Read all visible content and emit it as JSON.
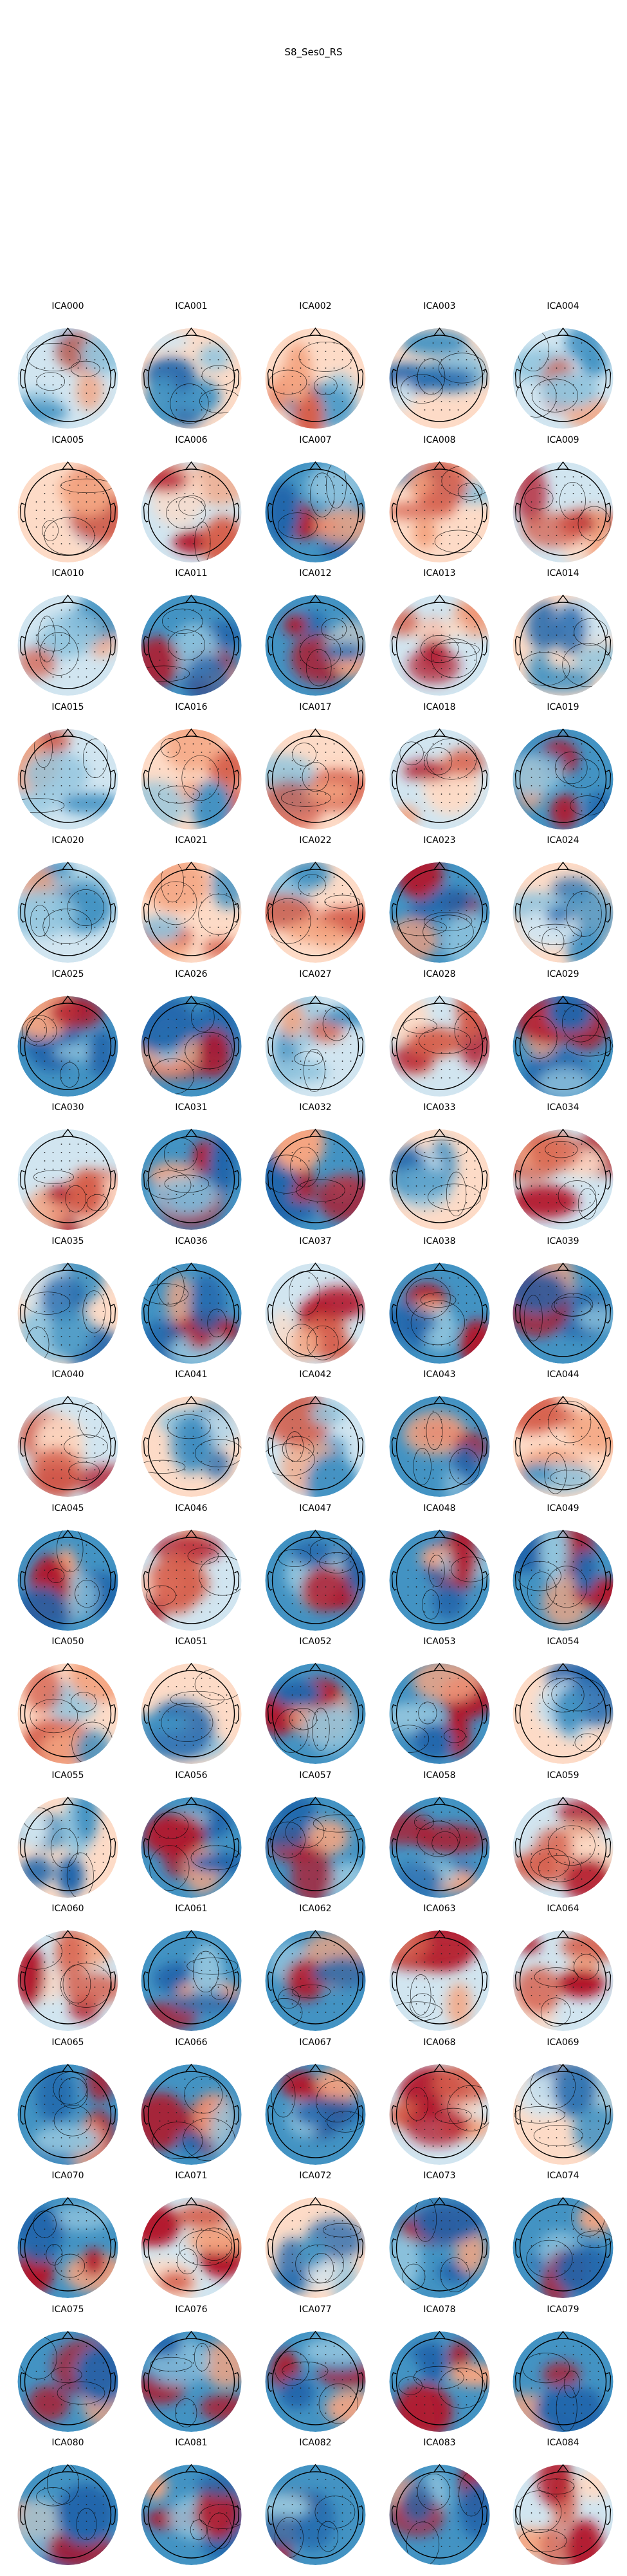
{
  "figure": {
    "title": "S8_Ses0_RS"
  },
  "components": [
    {
      "label": "ICA000",
      "palette": "br"
    },
    {
      "label": "ICA001",
      "palette": "b"
    },
    {
      "label": "ICA002",
      "palette": "rb"
    },
    {
      "label": "ICA003",
      "palette": "b"
    },
    {
      "label": "ICA004",
      "palette": "br"
    },
    {
      "label": "ICA005",
      "palette": "rb"
    },
    {
      "label": "ICA006",
      "palette": "r"
    },
    {
      "label": "ICA007",
      "palette": "mix"
    },
    {
      "label": "ICA008",
      "palette": "rb"
    },
    {
      "label": "ICA009",
      "palette": "r"
    },
    {
      "label": "ICA010",
      "palette": "br"
    },
    {
      "label": "ICA011",
      "palette": "mix"
    },
    {
      "label": "ICA012",
      "palette": "mix"
    },
    {
      "label": "ICA013",
      "palette": "r"
    },
    {
      "label": "ICA014",
      "palette": "b"
    },
    {
      "label": "ICA015",
      "palette": "br"
    },
    {
      "label": "ICA016",
      "palette": "rb"
    },
    {
      "label": "ICA017",
      "palette": "rb"
    },
    {
      "label": "ICA018",
      "palette": "r"
    },
    {
      "label": "ICA019",
      "palette": "mix"
    },
    {
      "label": "ICA020",
      "palette": "br"
    },
    {
      "label": "ICA021",
      "palette": "rb"
    },
    {
      "label": "ICA022",
      "palette": "rb"
    },
    {
      "label": "ICA023",
      "palette": "mix"
    },
    {
      "label": "ICA024",
      "palette": "b"
    },
    {
      "label": "ICA025",
      "palette": "mix"
    },
    {
      "label": "ICA026",
      "palette": "mix"
    },
    {
      "label": "ICA027",
      "palette": "br"
    },
    {
      "label": "ICA028",
      "palette": "r"
    },
    {
      "label": "ICA029",
      "palette": "mix"
    },
    {
      "label": "ICA030",
      "palette": "r"
    },
    {
      "label": "ICA031",
      "palette": "mix"
    },
    {
      "label": "ICA032",
      "palette": "mix"
    },
    {
      "label": "ICA033",
      "palette": "b"
    },
    {
      "label": "ICA034",
      "palette": "r"
    },
    {
      "label": "ICA035",
      "palette": "b"
    },
    {
      "label": "ICA036",
      "palette": "mix"
    },
    {
      "label": "ICA037",
      "palette": "r"
    },
    {
      "label": "ICA038",
      "palette": "mix"
    },
    {
      "label": "ICA039",
      "palette": "mix"
    },
    {
      "label": "ICA040",
      "palette": "r"
    },
    {
      "label": "ICA041",
      "palette": "b"
    },
    {
      "label": "ICA042",
      "palette": "br"
    },
    {
      "label": "ICA043",
      "palette": "mix"
    },
    {
      "label": "ICA044",
      "palette": "rb"
    },
    {
      "label": "ICA045",
      "palette": "mix"
    },
    {
      "label": "ICA046",
      "palette": "r"
    },
    {
      "label": "ICA047",
      "palette": "mix"
    },
    {
      "label": "ICA048",
      "palette": "mix"
    },
    {
      "label": "ICA049",
      "palette": "mix"
    },
    {
      "label": "ICA050",
      "palette": "rb"
    },
    {
      "label": "ICA051",
      "palette": "b"
    },
    {
      "label": "ICA052",
      "palette": "mix"
    },
    {
      "label": "ICA053",
      "palette": "mix"
    },
    {
      "label": "ICA054",
      "palette": "b"
    },
    {
      "label": "ICA055",
      "palette": "b"
    },
    {
      "label": "ICA056",
      "palette": "mix"
    },
    {
      "label": "ICA057",
      "palette": "mix"
    },
    {
      "label": "ICA058",
      "palette": "mix"
    },
    {
      "label": "ICA059",
      "palette": "r"
    },
    {
      "label": "ICA060",
      "palette": "r"
    },
    {
      "label": "ICA061",
      "palette": "mix"
    },
    {
      "label": "ICA062",
      "palette": "mix"
    },
    {
      "label": "ICA063",
      "palette": "r"
    },
    {
      "label": "ICA064",
      "palette": "r"
    },
    {
      "label": "ICA065",
      "palette": "mix"
    },
    {
      "label": "ICA066",
      "palette": "mix"
    },
    {
      "label": "ICA067",
      "palette": "mix"
    },
    {
      "label": "ICA068",
      "palette": "r"
    },
    {
      "label": "ICA069",
      "palette": "b"
    },
    {
      "label": "ICA070",
      "palette": "mix"
    },
    {
      "label": "ICA071",
      "palette": "r"
    },
    {
      "label": "ICA072",
      "palette": "b"
    },
    {
      "label": "ICA073",
      "palette": "mix"
    },
    {
      "label": "ICA074",
      "palette": "mix"
    },
    {
      "label": "ICA075",
      "palette": "mix"
    },
    {
      "label": "ICA076",
      "palette": "mix"
    },
    {
      "label": "ICA077",
      "palette": "mix"
    },
    {
      "label": "ICA078",
      "palette": "mix"
    },
    {
      "label": "ICA079",
      "palette": "mix"
    },
    {
      "label": "ICA080",
      "palette": "mix"
    },
    {
      "label": "ICA081",
      "palette": "mix"
    },
    {
      "label": "ICA082",
      "palette": "mix"
    },
    {
      "label": "ICA083",
      "palette": "mix"
    },
    {
      "label": "ICA084",
      "palette": "r"
    }
  ],
  "colors": {
    "red_dark": "#b2182b",
    "red": "#d6604d",
    "red_light": "#f4a582",
    "red_pale": "#fddbc7",
    "neutral": "#f7f7f7",
    "blue_pale": "#d1e5f0",
    "blue_light": "#92c5de",
    "blue": "#4393c3",
    "blue_dark": "#2166ac"
  }
}
